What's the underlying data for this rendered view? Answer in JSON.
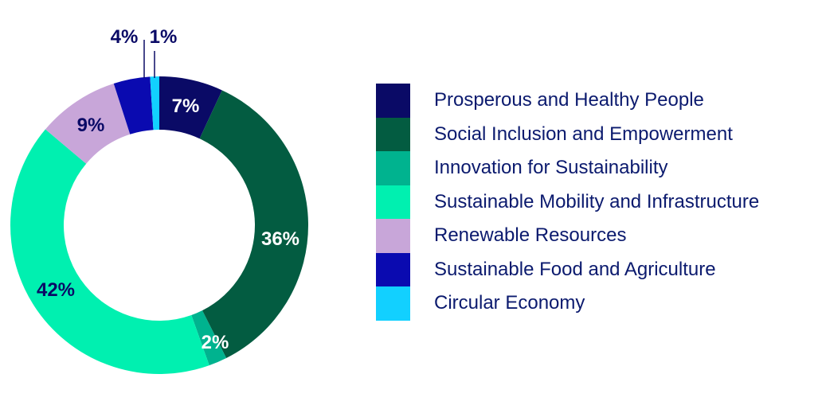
{
  "chart_data": {
    "type": "pie",
    "subtype": "donut",
    "title": "",
    "slices": [
      {
        "label": "Prosperous and Healthy People",
        "value": 7,
        "display": "7%",
        "color": "#0a0a66",
        "label_color": "#ffffff"
      },
      {
        "label": "Social Inclusion and Empowerment",
        "value": 36,
        "display": "36%",
        "color": "#035c41",
        "label_color": "#ffffff"
      },
      {
        "label": "Innovation for Sustainability",
        "value": 2,
        "display": "2%",
        "color": "#00b38f",
        "label_color": "#ffffff"
      },
      {
        "label": "Sustainable Mobility and Infrastructure",
        "value": 42,
        "display": "42%",
        "color": "#00f0b0",
        "label_color": "#0a0a66"
      },
      {
        "label": "Renewable Resources",
        "value": 9,
        "display": "9%",
        "color": "#c8a6d9",
        "label_color": "#0a0a66"
      },
      {
        "label": "Sustainable Food and Agriculture",
        "value": 4,
        "display": "4%",
        "color": "#0a0ab0",
        "label_color": "#0a0a66"
      },
      {
        "label": "Circular Economy",
        "value": 1,
        "display": "1%",
        "color": "#12d0ff",
        "label_color": "#0a0a66"
      }
    ],
    "legend_position": "right",
    "start_angle_deg": 0,
    "direction": "clockwise"
  }
}
